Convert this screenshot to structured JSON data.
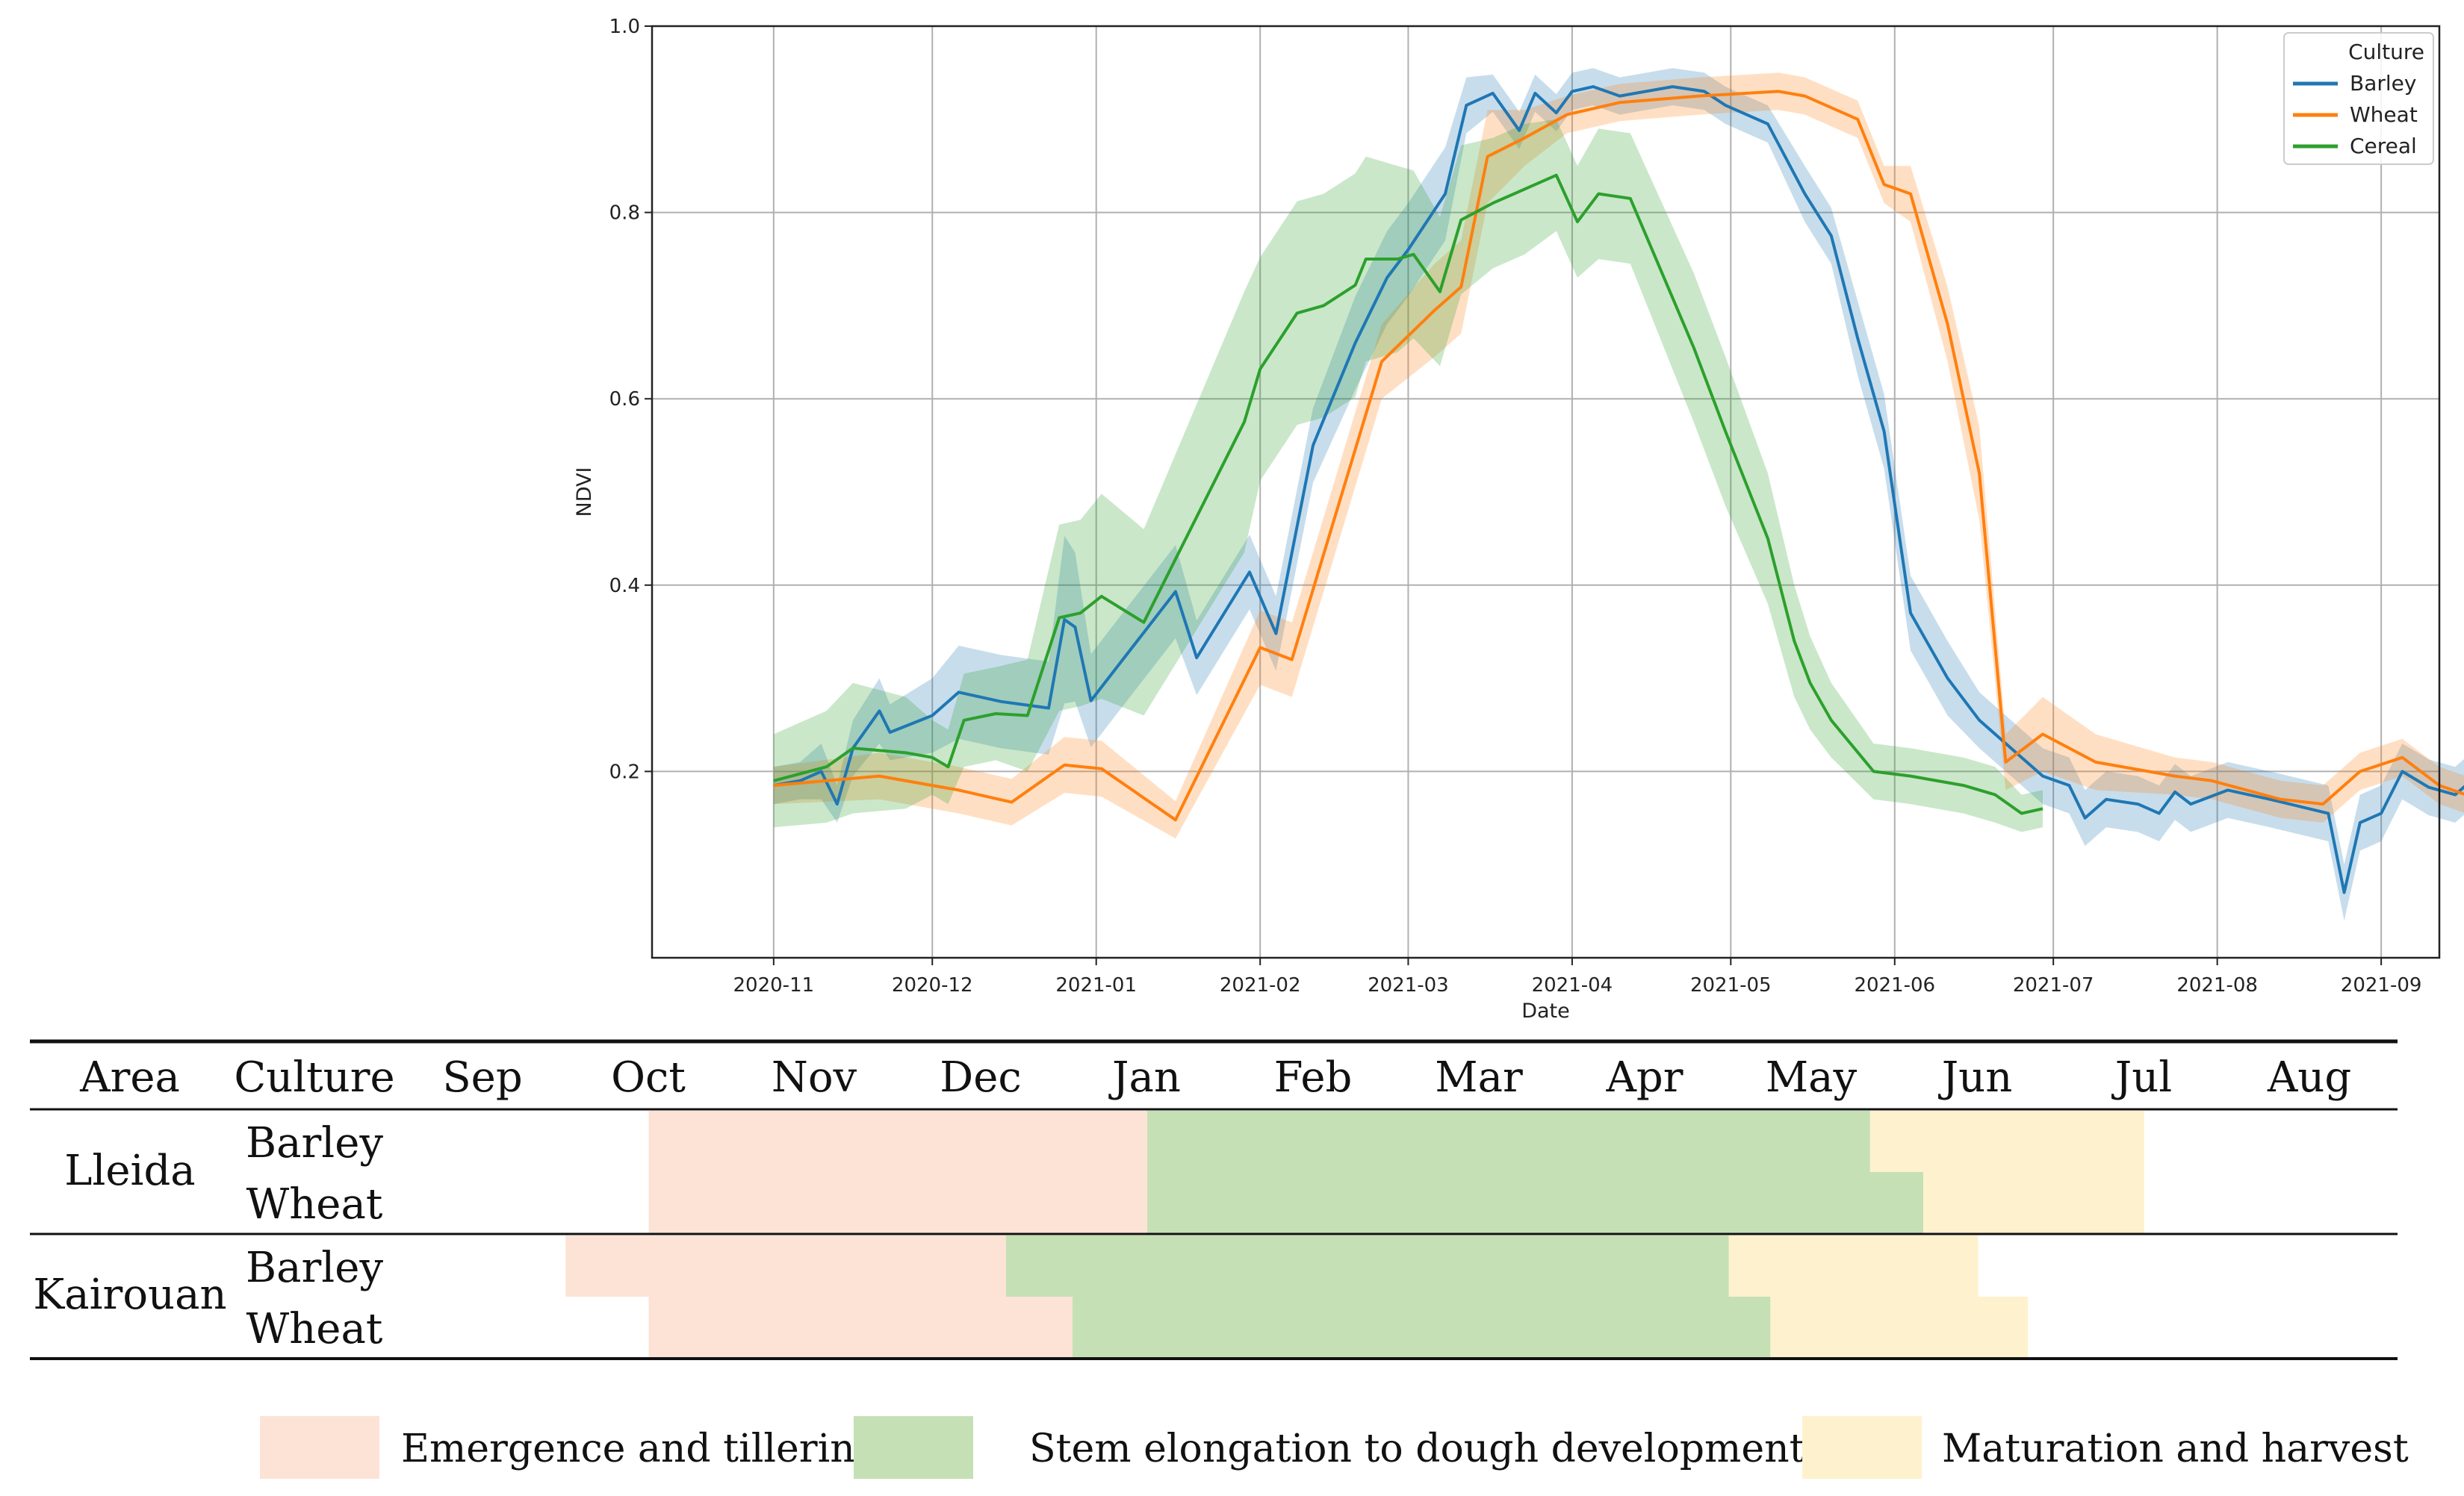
{
  "chart_data": {
    "type": "line",
    "title": "",
    "xlabel": "Date",
    "ylabel": "NDVI",
    "ylim": [
      0.0,
      1.0
    ],
    "xlim_days": [
      -23,
      315
    ],
    "x_axis_origin": "2020-11-01",
    "grid": true,
    "yticks": [
      {
        "v": 0.2,
        "label": "0.2"
      },
      {
        "v": 0.4,
        "label": "0.4"
      },
      {
        "v": 0.6,
        "label": "0.6"
      },
      {
        "v": 0.8,
        "label": "0.8"
      },
      {
        "v": 1.0,
        "label": "1.0"
      }
    ],
    "xticks": [
      {
        "d": 0,
        "label": "2020-11"
      },
      {
        "d": 30,
        "label": "2020-12"
      },
      {
        "d": 61,
        "label": "2021-01"
      },
      {
        "d": 92,
        "label": "2021-02"
      },
      {
        "d": 120,
        "label": "2021-03"
      },
      {
        "d": 151,
        "label": "2021-04"
      },
      {
        "d": 181,
        "label": "2021-05"
      },
      {
        "d": 212,
        "label": "2021-06"
      },
      {
        "d": 242,
        "label": "2021-07"
      },
      {
        "d": 273,
        "label": "2021-08"
      },
      {
        "d": 304,
        "label": "2021-09"
      }
    ],
    "legend": {
      "title": "Culture",
      "position": "top-right"
    },
    "series": [
      {
        "name": "Barley",
        "color": "#1f77b4",
        "points": [
          [
            0,
            0.185,
            0.02
          ],
          [
            5,
            0.19,
            0.02
          ],
          [
            9,
            0.2,
            0.03
          ],
          [
            12,
            0.165,
            0.02
          ],
          [
            15,
            0.225,
            0.03
          ],
          [
            20,
            0.265,
            0.035
          ],
          [
            22,
            0.242,
            0.03
          ],
          [
            30,
            0.26,
            0.04
          ],
          [
            35,
            0.285,
            0.05
          ],
          [
            43,
            0.275,
            0.05
          ],
          [
            52,
            0.268,
            0.05
          ],
          [
            55,
            0.363,
            0.09
          ],
          [
            57,
            0.355,
            0.08
          ],
          [
            60,
            0.276,
            0.05
          ],
          [
            76,
            0.393,
            0.05
          ],
          [
            80,
            0.322,
            0.04
          ],
          [
            90,
            0.414,
            0.04
          ],
          [
            95,
            0.348,
            0.04
          ],
          [
            102,
            0.55,
            0.04
          ],
          [
            110,
            0.66,
            0.05
          ],
          [
            116,
            0.73,
            0.05
          ],
          [
            120,
            0.76,
            0.05
          ],
          [
            127,
            0.82,
            0.05
          ],
          [
            131,
            0.915,
            0.03
          ],
          [
            136,
            0.928,
            0.02
          ],
          [
            141,
            0.888,
            0.02
          ],
          [
            144,
            0.928,
            0.02
          ],
          [
            148,
            0.907,
            0.02
          ],
          [
            151,
            0.93,
            0.02
          ],
          [
            155,
            0.935,
            0.02
          ],
          [
            160,
            0.925,
            0.02
          ],
          [
            170,
            0.935,
            0.02
          ],
          [
            176,
            0.93,
            0.02
          ],
          [
            180,
            0.915,
            0.02
          ],
          [
            188,
            0.895,
            0.02
          ],
          [
            195,
            0.82,
            0.03
          ],
          [
            200,
            0.775,
            0.03
          ],
          [
            205,
            0.665,
            0.04
          ],
          [
            210,
            0.565,
            0.04
          ],
          [
            215,
            0.37,
            0.04
          ],
          [
            222,
            0.3,
            0.04
          ],
          [
            228,
            0.255,
            0.03
          ],
          [
            236,
            0.215,
            0.03
          ],
          [
            240,
            0.195,
            0.03
          ],
          [
            245,
            0.185,
            0.03
          ],
          [
            248,
            0.15,
            0.03
          ],
          [
            252,
            0.17,
            0.03
          ],
          [
            258,
            0.165,
            0.03
          ],
          [
            262,
            0.155,
            0.03
          ],
          [
            265,
            0.178,
            0.03
          ],
          [
            268,
            0.165,
            0.03
          ],
          [
            275,
            0.18,
            0.03
          ],
          [
            283,
            0.17,
            0.03
          ],
          [
            294,
            0.155,
            0.03
          ],
          [
            297,
            0.07,
            0.03
          ],
          [
            300,
            0.145,
            0.03
          ],
          [
            304,
            0.155,
            0.03
          ],
          [
            308,
            0.2,
            0.03
          ],
          [
            313,
            0.183,
            0.03
          ],
          [
            318,
            0.175,
            0.03
          ],
          [
            321,
            0.19,
            0.03
          ],
          [
            325,
            0.175,
            0.03
          ],
          [
            328,
            0.185,
            0.03
          ],
          [
            332,
            0.165,
            0.03
          ],
          [
            335,
            0.115,
            0.04
          ],
          [
            339,
            0.185,
            0.03
          ]
        ]
      },
      {
        "name": "Wheat",
        "color": "#ff7f0e",
        "points": [
          [
            0,
            0.185,
            0.02
          ],
          [
            20,
            0.195,
            0.025
          ],
          [
            35,
            0.18,
            0.025
          ],
          [
            45,
            0.167,
            0.025
          ],
          [
            55,
            0.207,
            0.03
          ],
          [
            62,
            0.203,
            0.03
          ],
          [
            76,
            0.148,
            0.02
          ],
          [
            92,
            0.333,
            0.04
          ],
          [
            98,
            0.32,
            0.04
          ],
          [
            115,
            0.64,
            0.04
          ],
          [
            125,
            0.695,
            0.05
          ],
          [
            130,
            0.72,
            0.05
          ],
          [
            135,
            0.86,
            0.05
          ],
          [
            142,
            0.88,
            0.03
          ],
          [
            150,
            0.905,
            0.02
          ],
          [
            160,
            0.918,
            0.02
          ],
          [
            175,
            0.925,
            0.02
          ],
          [
            190,
            0.93,
            0.02
          ],
          [
            195,
            0.925,
            0.02
          ],
          [
            205,
            0.9,
            0.02
          ],
          [
            210,
            0.83,
            0.02
          ],
          [
            215,
            0.82,
            0.03
          ],
          [
            222,
            0.68,
            0.04
          ],
          [
            228,
            0.52,
            0.05
          ],
          [
            233,
            0.21,
            0.03
          ],
          [
            240,
            0.24,
            0.04
          ],
          [
            250,
            0.21,
            0.03
          ],
          [
            265,
            0.195,
            0.02
          ],
          [
            272,
            0.19,
            0.02
          ],
          [
            285,
            0.17,
            0.02
          ],
          [
            293,
            0.165,
            0.02
          ],
          [
            300,
            0.2,
            0.02
          ],
          [
            308,
            0.215,
            0.02
          ],
          [
            315,
            0.185,
            0.02
          ],
          [
            325,
            0.165,
            0.02
          ],
          [
            333,
            0.162,
            0.02
          ],
          [
            339,
            0.18,
            0.02
          ]
        ]
      },
      {
        "name": "Cereal",
        "color": "#2ca02c",
        "points": [
          [
            0,
            0.19,
            0.05
          ],
          [
            10,
            0.205,
            0.06
          ],
          [
            15,
            0.225,
            0.07
          ],
          [
            25,
            0.22,
            0.06
          ],
          [
            30,
            0.215,
            0.04
          ],
          [
            33,
            0.205,
            0.04
          ],
          [
            36,
            0.255,
            0.05
          ],
          [
            42,
            0.262,
            0.05
          ],
          [
            48,
            0.26,
            0.06
          ],
          [
            54,
            0.365,
            0.1
          ],
          [
            58,
            0.37,
            0.1
          ],
          [
            62,
            0.388,
            0.11
          ],
          [
            70,
            0.36,
            0.1
          ],
          [
            89,
            0.575,
            0.14
          ],
          [
            92,
            0.632,
            0.12
          ],
          [
            99,
            0.692,
            0.12
          ],
          [
            104,
            0.7,
            0.12
          ],
          [
            110,
            0.722,
            0.12
          ],
          [
            112,
            0.75,
            0.11
          ],
          [
            118,
            0.75,
            0.1
          ],
          [
            121,
            0.755,
            0.09
          ],
          [
            126,
            0.715,
            0.08
          ],
          [
            130,
            0.792,
            0.08
          ],
          [
            136,
            0.81,
            0.07
          ],
          [
            142,
            0.825,
            0.07
          ],
          [
            148,
            0.84,
            0.06
          ],
          [
            152,
            0.79,
            0.06
          ],
          [
            156,
            0.82,
            0.07
          ],
          [
            162,
            0.815,
            0.07
          ],
          [
            174,
            0.655,
            0.08
          ],
          [
            180,
            0.565,
            0.08
          ],
          [
            188,
            0.45,
            0.07
          ],
          [
            193,
            0.34,
            0.06
          ],
          [
            196,
            0.295,
            0.05
          ],
          [
            200,
            0.255,
            0.04
          ],
          [
            208,
            0.2,
            0.03
          ],
          [
            215,
            0.195,
            0.03
          ],
          [
            225,
            0.185,
            0.03
          ],
          [
            231,
            0.175,
            0.03
          ],
          [
            236,
            0.155,
            0.02
          ],
          [
            240,
            0.16,
            0.02
          ]
        ]
      }
    ]
  },
  "calendar": {
    "headers": {
      "area": "Area",
      "culture": "Culture"
    },
    "months": [
      "Sep",
      "Oct",
      "Nov",
      "Dec",
      "Jan",
      "Feb",
      "Mar",
      "Apr",
      "May",
      "Jun",
      "Jul",
      "Aug"
    ],
    "rows": [
      {
        "area": "Lleida",
        "culture": "Barley",
        "phases": [
          [
            1.5,
            4.5
          ],
          [
            4.5,
            8.85
          ],
          [
            8.85,
            10.5
          ]
        ]
      },
      {
        "area": "Lleida",
        "culture": "Wheat",
        "phases": [
          [
            1.5,
            4.5
          ],
          [
            4.5,
            9.17
          ],
          [
            9.17,
            10.5
          ]
        ]
      },
      {
        "area": "Kairouan",
        "culture": "Barley",
        "phases": [
          [
            1.0,
            3.65
          ],
          [
            3.65,
            8.0
          ],
          [
            8.0,
            9.5
          ]
        ]
      },
      {
        "area": "Kairouan",
        "culture": "Wheat",
        "phases": [
          [
            1.5,
            4.05
          ],
          [
            4.05,
            8.25
          ],
          [
            8.25,
            9.8
          ]
        ]
      }
    ],
    "phases": [
      {
        "label": "Emergence and tillering",
        "color": "#fce3d6"
      },
      {
        "label": "Stem elongation to dough development",
        "color": "#c6e0b5"
      },
      {
        "label": "Maturation and harvest",
        "color": "#fef1cd"
      }
    ]
  }
}
